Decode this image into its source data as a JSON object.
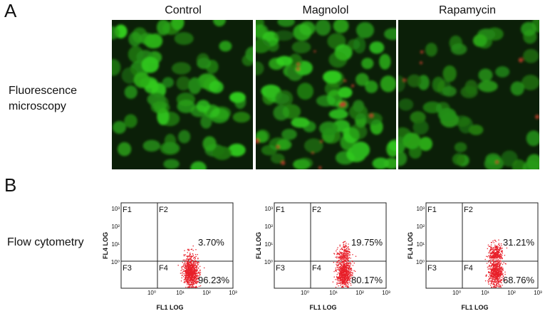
{
  "panel_a": {
    "letter": "A",
    "row_label_line1": "Fluorescence",
    "row_label_line2": "microscopy"
  },
  "panel_b": {
    "letter": "B",
    "row_label": "Flow cytometry"
  },
  "colors": {
    "green_nuclei": "#3fa92a",
    "red_spots": "#c8402a",
    "dot_red": "#e8202a",
    "frame": "#222222"
  },
  "conditions": [
    "Control",
    "Magnolol",
    "Rapamycin"
  ],
  "microscopy": [
    {
      "condition": "Control",
      "green_density": 0.8,
      "red_density": 0.0,
      "brightness": 1.0
    },
    {
      "condition": "Magnolol",
      "green_density": 0.95,
      "red_density": 0.35,
      "brightness": 1.15
    },
    {
      "condition": "Rapamycin",
      "green_density": 0.6,
      "red_density": 0.15,
      "brightness": 0.75
    }
  ],
  "flow": {
    "x_label": "FL1 LOG",
    "y_label": "FL4 LOG",
    "quadrants": [
      "F1",
      "F2",
      "F3",
      "F4"
    ],
    "x_ticks": [
      "10⁰",
      "10¹",
      "10²",
      "10³"
    ],
    "y_ticks": [
      "10³",
      "10²",
      "10¹",
      "10⁰"
    ],
    "plots": [
      {
        "condition": "Control",
        "upper_right": "3.70%",
        "lower_right": "96.23%"
      },
      {
        "condition": "Magnolol",
        "upper_right": "19.75%",
        "lower_right": "80.17%"
      },
      {
        "condition": "Rapamycin",
        "upper_right": "31.21%",
        "lower_right": "68.76%"
      }
    ]
  }
}
